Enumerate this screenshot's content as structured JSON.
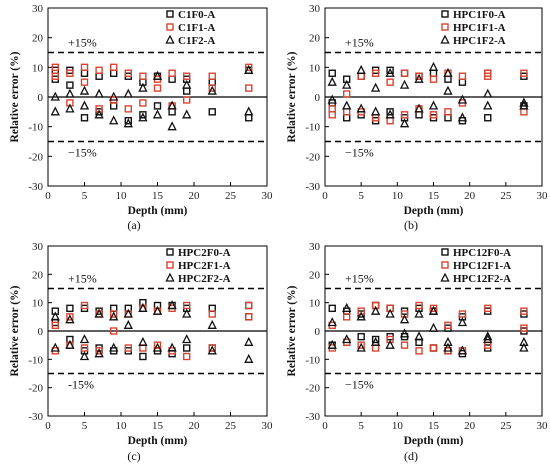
{
  "chart_data": [
    {
      "type": "scatter",
      "panel_label": "(a)",
      "xlabel": "Depth (mm)",
      "ylabel": "Relative error (%)",
      "xlim": [
        0,
        30
      ],
      "ylim": [
        -30,
        30
      ],
      "xticks": [
        "0",
        "5",
        "10",
        "15",
        "20",
        "25",
        "30"
      ],
      "yticks": [
        "-30",
        "-20",
        "-10",
        "0",
        "10",
        "20",
        "30"
      ],
      "ref_lines": [
        15,
        -15,
        0
      ],
      "annotations": {
        "upper": "+15%",
        "lower": "−15%"
      },
      "legend_position": "top-right",
      "series": [
        {
          "name": "C1F0-A",
          "marker": "square",
          "color": "#111111",
          "x": [
            1,
            1,
            3,
            3,
            5,
            5,
            7,
            7,
            9,
            9,
            11,
            11,
            13,
            13,
            15,
            15,
            17,
            17,
            19,
            19,
            22.5,
            22.5,
            27.5,
            27.5
          ],
          "y": [
            9,
            6,
            9,
            4,
            8,
            -7,
            7,
            -5,
            8,
            -3,
            7,
            -8,
            5,
            -6,
            7,
            -3,
            6,
            -5,
            6,
            2,
            5,
            -5,
            9,
            -7
          ]
        },
        {
          "name": "C1F1-A",
          "marker": "square",
          "color": "#d8442f",
          "x": [
            1,
            1,
            3,
            3,
            5,
            5,
            7,
            7,
            9,
            9,
            11,
            11,
            13,
            13,
            15,
            15,
            17,
            17,
            19,
            19,
            22.5,
            22.5,
            27.5,
            27.5
          ],
          "y": [
            10,
            7,
            8,
            -2,
            10,
            5,
            9,
            -4,
            10,
            -1,
            8,
            -4,
            7,
            -2,
            6,
            3,
            8,
            -3,
            7,
            -1,
            7,
            3,
            10,
            3
          ]
        },
        {
          "name": "C1F2-A",
          "marker": "triangle",
          "color": "#111111",
          "x": [
            1,
            1,
            3,
            3,
            5,
            5,
            7,
            7,
            9,
            9,
            11,
            11,
            13,
            13,
            15,
            15,
            17,
            17,
            19,
            19,
            22.5,
            27.5,
            27.5
          ],
          "y": [
            -5,
            0,
            -4,
            1,
            -3,
            2,
            -6,
            1,
            -8,
            0,
            -9,
            1,
            -7,
            3,
            -6,
            7,
            -10,
            -3,
            -6,
            4,
            2,
            -5,
            9
          ]
        }
      ]
    },
    {
      "type": "scatter",
      "panel_label": "(b)",
      "xlabel": "Depth (mm)",
      "ylabel": "Relative error (%)",
      "xlim": [
        0,
        30
      ],
      "ylim": [
        -30,
        30
      ],
      "xticks": [
        "0",
        "5",
        "10",
        "15",
        "20",
        "25",
        "30"
      ],
      "yticks": [
        "-30",
        "-20",
        "-10",
        "0",
        "10",
        "20",
        "30"
      ],
      "ref_lines": [
        15,
        -15,
        0
      ],
      "annotations": {
        "upper": "+15%",
        "lower": "−15%"
      },
      "legend_position": "top-right",
      "series": [
        {
          "name": "HPC1F0-A",
          "marker": "square",
          "color": "#111111",
          "x": [
            1,
            1,
            3,
            3,
            5,
            5,
            7,
            7,
            9,
            9,
            11,
            11,
            13,
            13,
            15,
            15,
            17,
            17,
            19,
            19,
            22.5,
            22.5,
            27.5,
            27.5
          ],
          "y": [
            8,
            -2,
            6,
            -7,
            7,
            -6,
            9,
            -8,
            9,
            -5,
            8,
            -7,
            7,
            -6,
            8,
            -7,
            6,
            -7,
            5,
            -8,
            8,
            -7,
            7,
            -3
          ]
        },
        {
          "name": "HPC1F1-A",
          "marker": "square",
          "color": "#d8442f",
          "x": [
            1,
            1,
            3,
            3,
            5,
            5,
            7,
            7,
            9,
            9,
            11,
            11,
            13,
            13,
            15,
            15,
            17,
            17,
            19,
            19,
            22.5,
            22.5,
            27.5,
            27.5
          ],
          "y": [
            -4,
            -6,
            1,
            -5,
            7,
            -5,
            8,
            -7,
            5,
            -8,
            8,
            -6,
            7,
            -4,
            6,
            -6,
            8,
            -5,
            7,
            -2,
            8,
            7,
            8,
            -5
          ]
        },
        {
          "name": "HPC1F2-A",
          "marker": "triangle",
          "color": "#111111",
          "x": [
            1,
            1,
            3,
            3,
            5,
            5,
            7,
            7,
            9,
            9,
            11,
            11,
            13,
            13,
            15,
            15,
            17,
            17,
            19,
            19,
            22.5,
            22.5,
            27.5,
            27.5
          ],
          "y": [
            5,
            -1,
            4,
            -3,
            9,
            -4,
            3,
            -5,
            8,
            -6,
            4,
            -9,
            6,
            -4,
            10,
            -3,
            8,
            2,
            -1,
            -7,
            1,
            -3,
            -2,
            -3
          ]
        }
      ]
    },
    {
      "type": "scatter",
      "panel_label": "(c)",
      "xlabel": "Depth (mm)",
      "ylabel": "Relative error (%)",
      "xlim": [
        0,
        30
      ],
      "ylim": [
        -30,
        30
      ],
      "xticks": [
        "0",
        "5",
        "10",
        "15",
        "20",
        "25",
        "30"
      ],
      "yticks": [
        "-30",
        "-20",
        "-10",
        "0",
        "10",
        "20",
        "30"
      ],
      "ref_lines": [
        15,
        -15,
        0
      ],
      "annotations": {
        "upper": "+15%",
        "lower": "-15%"
      },
      "legend_position": "top-right",
      "series": [
        {
          "name": "HPC2F0-A",
          "marker": "square",
          "color": "#111111",
          "x": [
            1,
            1,
            3,
            3,
            5,
            5,
            7,
            7,
            9,
            9,
            11,
            11,
            13,
            13,
            15,
            15,
            17,
            17,
            19,
            19,
            22.5,
            22.5,
            27.5,
            27.5
          ],
          "y": [
            7,
            3,
            8,
            -3,
            8,
            -7,
            7,
            -6,
            8,
            -7,
            8,
            -7,
            10,
            -9,
            9,
            -7,
            9,
            -8,
            8,
            -6,
            8,
            -6,
            9,
            5
          ]
        },
        {
          "name": "HPC2F1-A",
          "marker": "square",
          "color": "#d8442f",
          "x": [
            1,
            1,
            3,
            3,
            5,
            5,
            7,
            7,
            9,
            9,
            11,
            11,
            13,
            13,
            15,
            15,
            17,
            17,
            19,
            19,
            22.5,
            22.5,
            27.5,
            27.5
          ],
          "y": [
            2,
            -7,
            5,
            -5,
            9,
            -6,
            6,
            -7,
            6,
            0,
            6,
            -6,
            8,
            -6,
            7,
            -5,
            8,
            -7,
            9,
            -9,
            6,
            -6,
            9,
            5
          ]
        },
        {
          "name": "HPC2F2-A",
          "marker": "triangle",
          "color": "#111111",
          "x": [
            1,
            1,
            3,
            3,
            5,
            5,
            7,
            7,
            9,
            9,
            11,
            11,
            13,
            13,
            15,
            15,
            17,
            17,
            19,
            19,
            22.5,
            22.5,
            27.5,
            27.5
          ],
          "y": [
            5,
            -6,
            4,
            -5,
            -3,
            -9,
            6,
            -8,
            5,
            -6,
            6,
            2,
            8,
            -4,
            7,
            -6,
            9,
            -6,
            6,
            -3,
            2,
            -7,
            -4,
            -10
          ]
        }
      ]
    },
    {
      "type": "scatter",
      "panel_label": "(d)",
      "xlabel": "Depth (mm)",
      "ylabel": "Relative error (%)",
      "xlim": [
        0,
        30
      ],
      "ylim": [
        -30,
        30
      ],
      "xticks": [
        "0",
        "5",
        "10",
        "15",
        "20",
        "25",
        "30"
      ],
      "yticks": [
        "-30",
        "-20",
        "-10",
        "0",
        "10",
        "20",
        "30"
      ],
      "ref_lines": [
        15,
        -15,
        0
      ],
      "annotations": {
        "upper": "+15%",
        "lower": "−15%"
      },
      "legend_position": "top-right",
      "series": [
        {
          "name": "HPC12F0-A",
          "marker": "square",
          "color": "#111111",
          "x": [
            1,
            1,
            3,
            3,
            5,
            5,
            7,
            7,
            9,
            9,
            11,
            11,
            13,
            13,
            15,
            15,
            17,
            17,
            19,
            19,
            22.5,
            22.5,
            27.5,
            27.5
          ],
          "y": [
            8,
            -5,
            7,
            -4,
            6,
            -2,
            9,
            -3,
            8,
            -2,
            7,
            -2,
            8,
            -4,
            7,
            -6,
            1,
            -7,
            5,
            -8,
            7,
            -6,
            6,
            0
          ]
        },
        {
          "name": "HPC12F1-A",
          "marker": "square",
          "color": "#d8442f",
          "x": [
            1,
            1,
            3,
            3,
            5,
            5,
            7,
            7,
            9,
            9,
            11,
            11,
            13,
            13,
            15,
            15,
            17,
            17,
            19,
            19,
            22.5,
            22.5,
            27.5,
            27.5
          ],
          "y": [
            2,
            -6,
            5,
            -4,
            7,
            -5,
            9,
            -6,
            8,
            -3,
            6,
            -5,
            9,
            -7,
            8,
            -6,
            2,
            -7,
            6,
            -7,
            8,
            -5,
            7,
            1
          ]
        },
        {
          "name": "HPC12F2-A",
          "marker": "triangle",
          "color": "#111111",
          "x": [
            1,
            1,
            3,
            3,
            5,
            5,
            7,
            7,
            9,
            9,
            11,
            11,
            13,
            13,
            15,
            15,
            17,
            17,
            19,
            19,
            22.5,
            22.5,
            27.5,
            27.5
          ],
          "y": [
            3,
            -5,
            8,
            -3,
            5,
            -6,
            7,
            -4,
            6,
            -5,
            4,
            -1,
            6,
            -2,
            7,
            1,
            -4,
            -6,
            -7,
            3,
            -2,
            -3,
            -4,
            -6
          ]
        }
      ]
    }
  ]
}
